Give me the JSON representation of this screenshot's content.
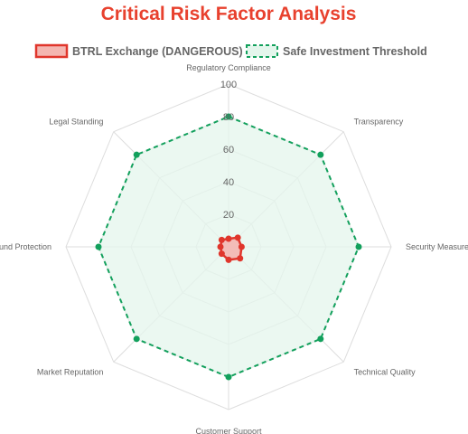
{
  "chart_data": {
    "type": "radar",
    "title": "Critical Risk Factor Analysis",
    "axes": [
      "Regulatory Compliance",
      "Transparency",
      "Security Measures",
      "Technical Quality",
      "Customer Support",
      "Market Reputation",
      "Fund Protection",
      "Legal Standing"
    ],
    "r_ticks": [
      20,
      40,
      60,
      80,
      100
    ],
    "rlim": [
      0,
      100
    ],
    "series": [
      {
        "name": "BTRL Exchange (DANGEROUS)",
        "values": [
          5,
          8,
          8,
          10,
          8,
          6,
          5,
          6
        ],
        "color": "#e0362c",
        "fill": "#f4b6b1"
      },
      {
        "name": "Safe Investment Threshold",
        "values": [
          80,
          80,
          80,
          80,
          80,
          80,
          80,
          80
        ],
        "color": "#12a05c",
        "fill": "#e4f6ec"
      }
    ],
    "legend_position": "top",
    "grid": true
  },
  "colors": {
    "title": "#e8412e",
    "grid": "#dddddd",
    "label": "#666666"
  }
}
